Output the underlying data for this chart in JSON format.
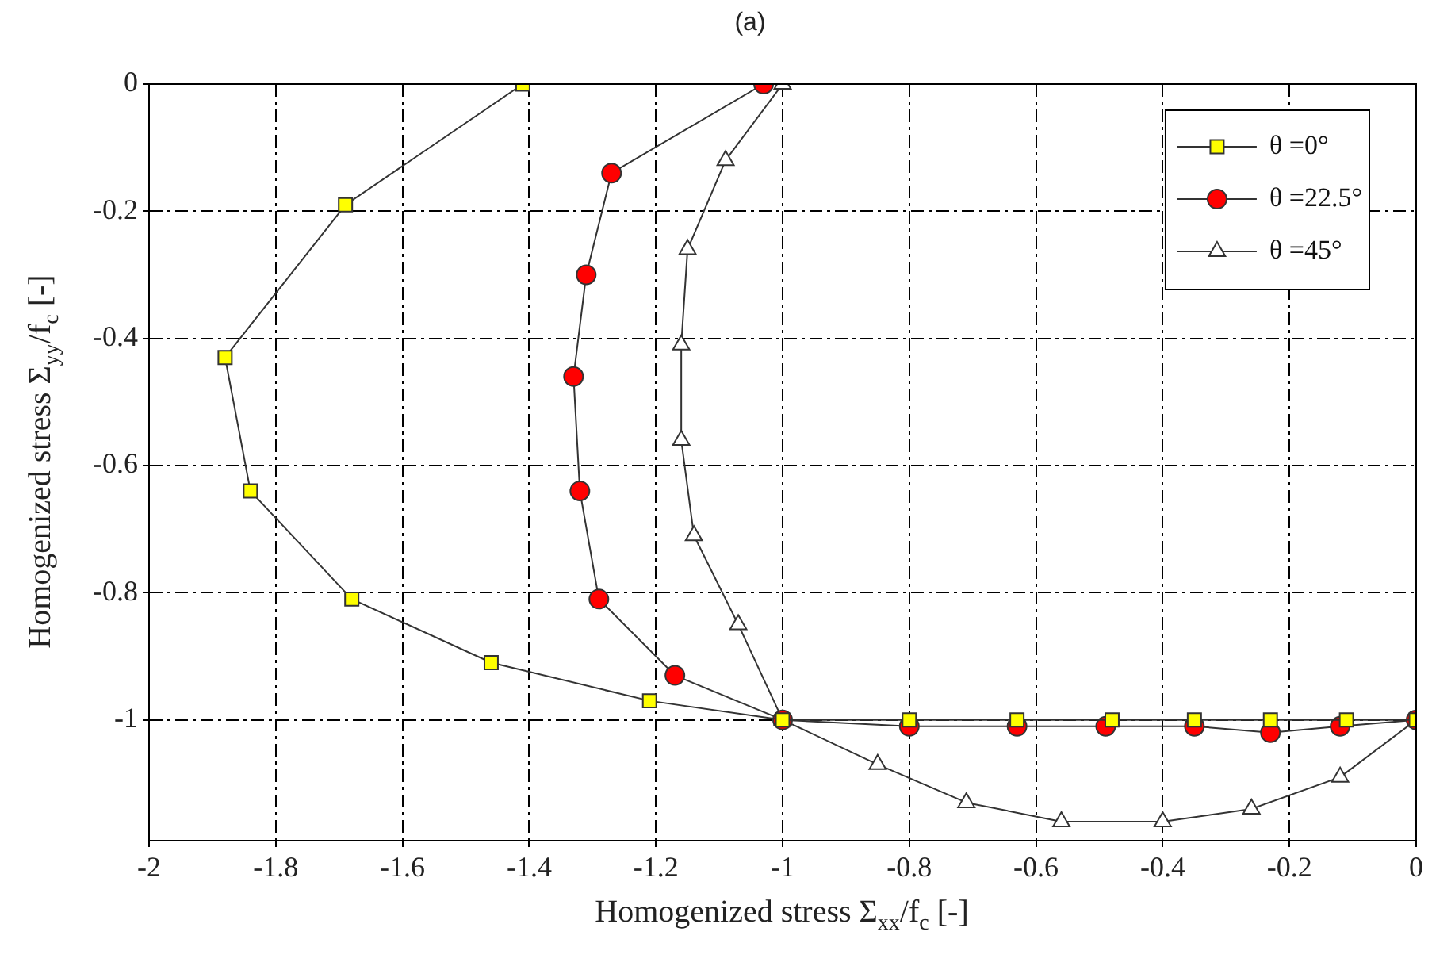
{
  "chart_data": {
    "type": "line",
    "title": "(a)",
    "xlabel": "Homogenized stress Σ$_{xx}$/f$_{c}$ [-]",
    "ylabel": "Homogenized stress Σ$_{yy}$/f$_{c}$ [-]",
    "xlim": [
      -2,
      0
    ],
    "xticks": [
      -2,
      -1.8,
      -1.6,
      -1.4,
      -1.2,
      -1,
      -0.8,
      -0.6,
      -0.4,
      -0.2,
      0
    ],
    "ylim": [
      -1.19,
      0
    ],
    "yticks": [
      0,
      -0.2,
      -0.4,
      -0.6,
      -0.8,
      -1
    ],
    "grid": true,
    "legend": "top right",
    "line_style": "solid",
    "series": [
      {
        "name": "θ =0°",
        "color": "#ffff00",
        "marker": "square",
        "x": [
          -1.41,
          -1.69,
          -1.88,
          -1.84,
          -1.68,
          -1.46,
          -1.21,
          -1,
          -0.8,
          -0.63,
          -0.48,
          -0.35,
          -0.23,
          -0.11,
          0
        ],
        "values": [
          0,
          -0.19,
          -0.43,
          -0.64,
          -0.81,
          -0.91,
          -0.97,
          -1,
          -1,
          -1,
          -1,
          -1,
          -1,
          -1,
          -1
        ]
      },
      {
        "name": "θ =22.5°",
        "color": "#ff0000",
        "marker": "circle",
        "x": [
          -1.03,
          -1.27,
          -1.31,
          -1.33,
          -1.32,
          -1.29,
          -1.17,
          -1,
          -0.8,
          -0.63,
          -0.49,
          -0.35,
          -0.23,
          -0.12,
          0
        ],
        "values": [
          0,
          -0.14,
          -0.3,
          -0.46,
          -0.64,
          -0.81,
          -0.93,
          -1,
          -1.01,
          -1.01,
          -1.01,
          -1.01,
          -1.02,
          -1.01,
          -1
        ]
      },
      {
        "name": "θ =45°",
        "color": "#ffffff",
        "marker": "triangle",
        "x": [
          -1,
          -1.09,
          -1.15,
          -1.16,
          -1.16,
          -1.14,
          -1.07,
          -1,
          -0.85,
          -0.71,
          -0.56,
          -0.4,
          -0.26,
          -0.12,
          0
        ],
        "values": [
          0,
          -0.12,
          -0.26,
          -0.41,
          -0.56,
          -0.71,
          -0.85,
          -1,
          -1.07,
          -1.13,
          -1.16,
          -1.16,
          -1.14,
          -1.09,
          -1
        ]
      }
    ]
  }
}
